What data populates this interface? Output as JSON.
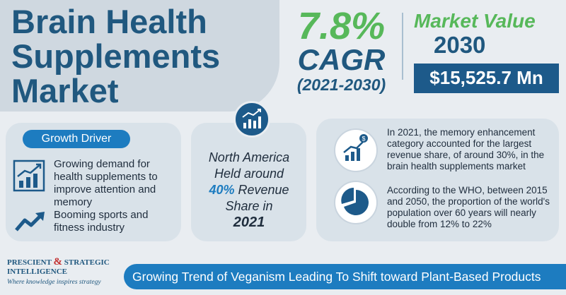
{
  "title": "Brain Health Supplements Market",
  "cagr": {
    "value": "7.8%",
    "label": "CAGR",
    "period": "(2021-2030)"
  },
  "market_value": {
    "label": "Market Value",
    "year": "2030",
    "value": "$15,525.7 Mn"
  },
  "growth_driver": {
    "label": "Growth Driver",
    "items": [
      {
        "text": "Growing demand for health supplements to improve attention and memory",
        "icon": "bar-chart-trend-icon"
      },
      {
        "text": "Booming sports and fitness industry",
        "icon": "trend-arrow-icon"
      }
    ]
  },
  "regional": {
    "icon": "growth-chart-icon",
    "line1": "North America Held around",
    "highlight": "40%",
    "line2": "Revenue Share in",
    "year": "2021"
  },
  "insights": [
    {
      "icon": "money-growth-icon",
      "text": "In 2021, the memory enhancement category accounted for the largest revenue share, of around 30%, in the brain health supplements market"
    },
    {
      "icon": "pie-chart-icon",
      "text": "According to the WHO, between 2015 and 2050, the proportion of the world's population over 60 years will nearly double from 12% to 22%"
    }
  ],
  "logo": {
    "line1a": "PRESCIENT",
    "amp": "&",
    "line1b": "STRATEGIC",
    "line2": "INTELLIGENCE",
    "tagline": "Where knowledge inspires strategy"
  },
  "footer_banner": "Growing Trend of Veganism Leading To Shift toward Plant-Based Products",
  "colors": {
    "navy": "#20587f",
    "green": "#57b85a",
    "blue": "#1d7cc0",
    "dark_blue": "#1d5a8a"
  }
}
